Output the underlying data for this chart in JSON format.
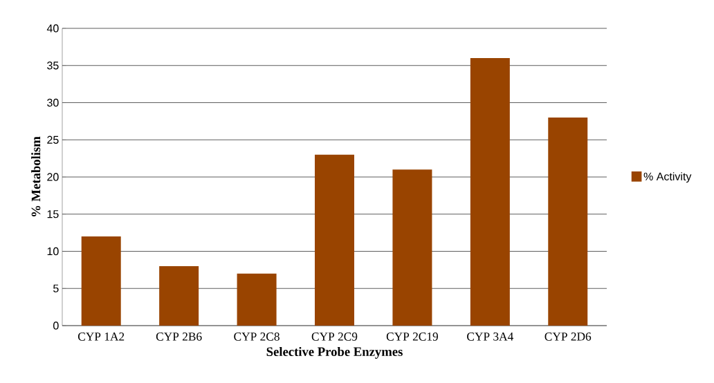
{
  "chart_data": {
    "type": "bar",
    "xlabel": "Selective Probe Enzymes",
    "ylabel": "% Metabolism",
    "categories": [
      "CYP 1A2",
      "CYP 2B6",
      "CYP 2C8",
      "CYP 2C9",
      "CYP 2C19",
      "CYP 3A4",
      "CYP 2D6"
    ],
    "series": [
      {
        "name": "% Activity",
        "color": "#994400",
        "values": [
          12,
          8,
          7,
          23,
          21,
          36,
          28
        ]
      }
    ],
    "ylim": [
      0,
      40
    ],
    "yticks": [
      0,
      5,
      10,
      15,
      20,
      25,
      30,
      35,
      40
    ],
    "grid": "y",
    "legend": "right"
  }
}
